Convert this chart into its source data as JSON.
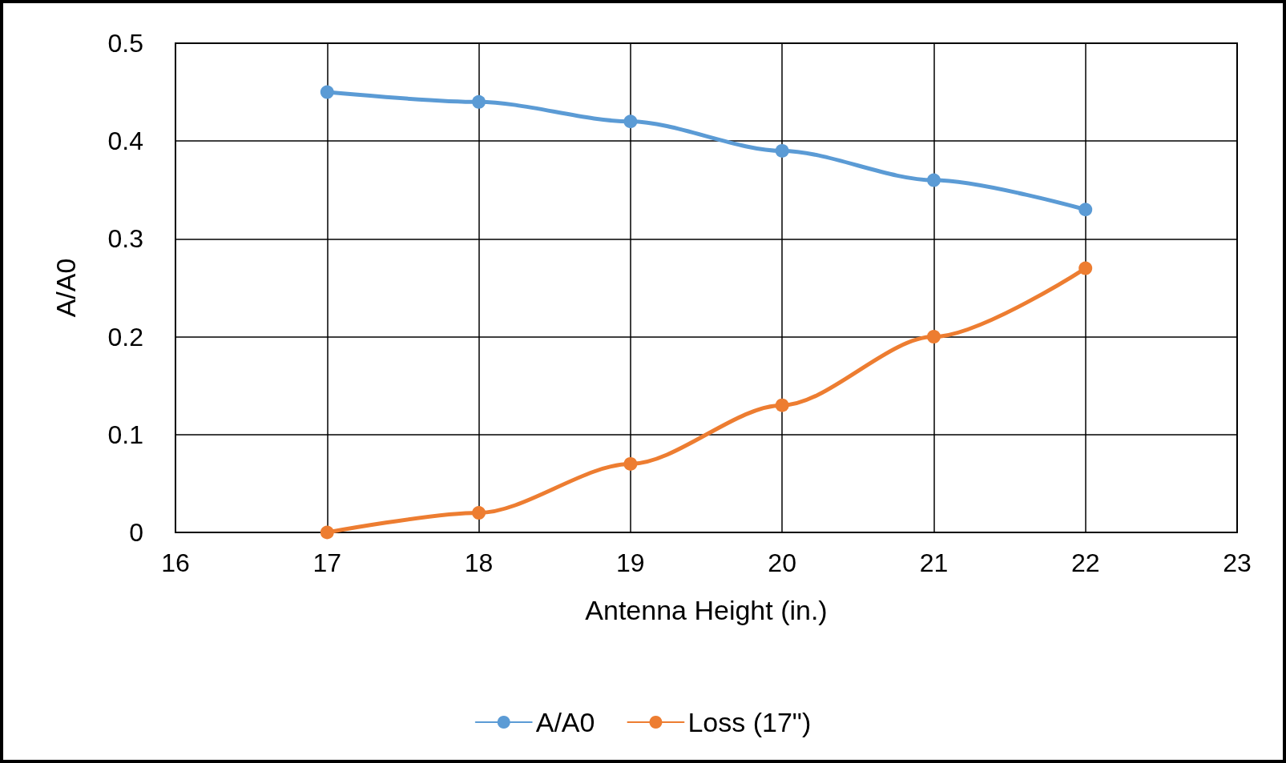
{
  "chart_data": {
    "type": "line",
    "xlabel": "Antenna Height (in.)",
    "ylabel": "A/A0",
    "x": [
      17,
      18,
      19,
      20,
      21,
      22
    ],
    "series": [
      {
        "name": "A/A0",
        "color": "#5b9bd5",
        "values": [
          0.45,
          0.44,
          0.42,
          0.39,
          0.36,
          0.33
        ]
      },
      {
        "name": "Loss (17\")",
        "color": "#ed7d31",
        "values": [
          0,
          0.02,
          0.07,
          0.13,
          0.2,
          0.27
        ]
      }
    ],
    "xlim": [
      16,
      23
    ],
    "xticks": [
      16,
      17,
      18,
      19,
      20,
      21,
      22,
      23
    ],
    "ylim": [
      0,
      0.5
    ],
    "yticks": [
      0,
      0.1,
      0.2,
      0.3,
      0.4,
      0.5
    ],
    "grid": true,
    "legend": "bottom",
    "marker": "circle",
    "line_style": "solid"
  }
}
